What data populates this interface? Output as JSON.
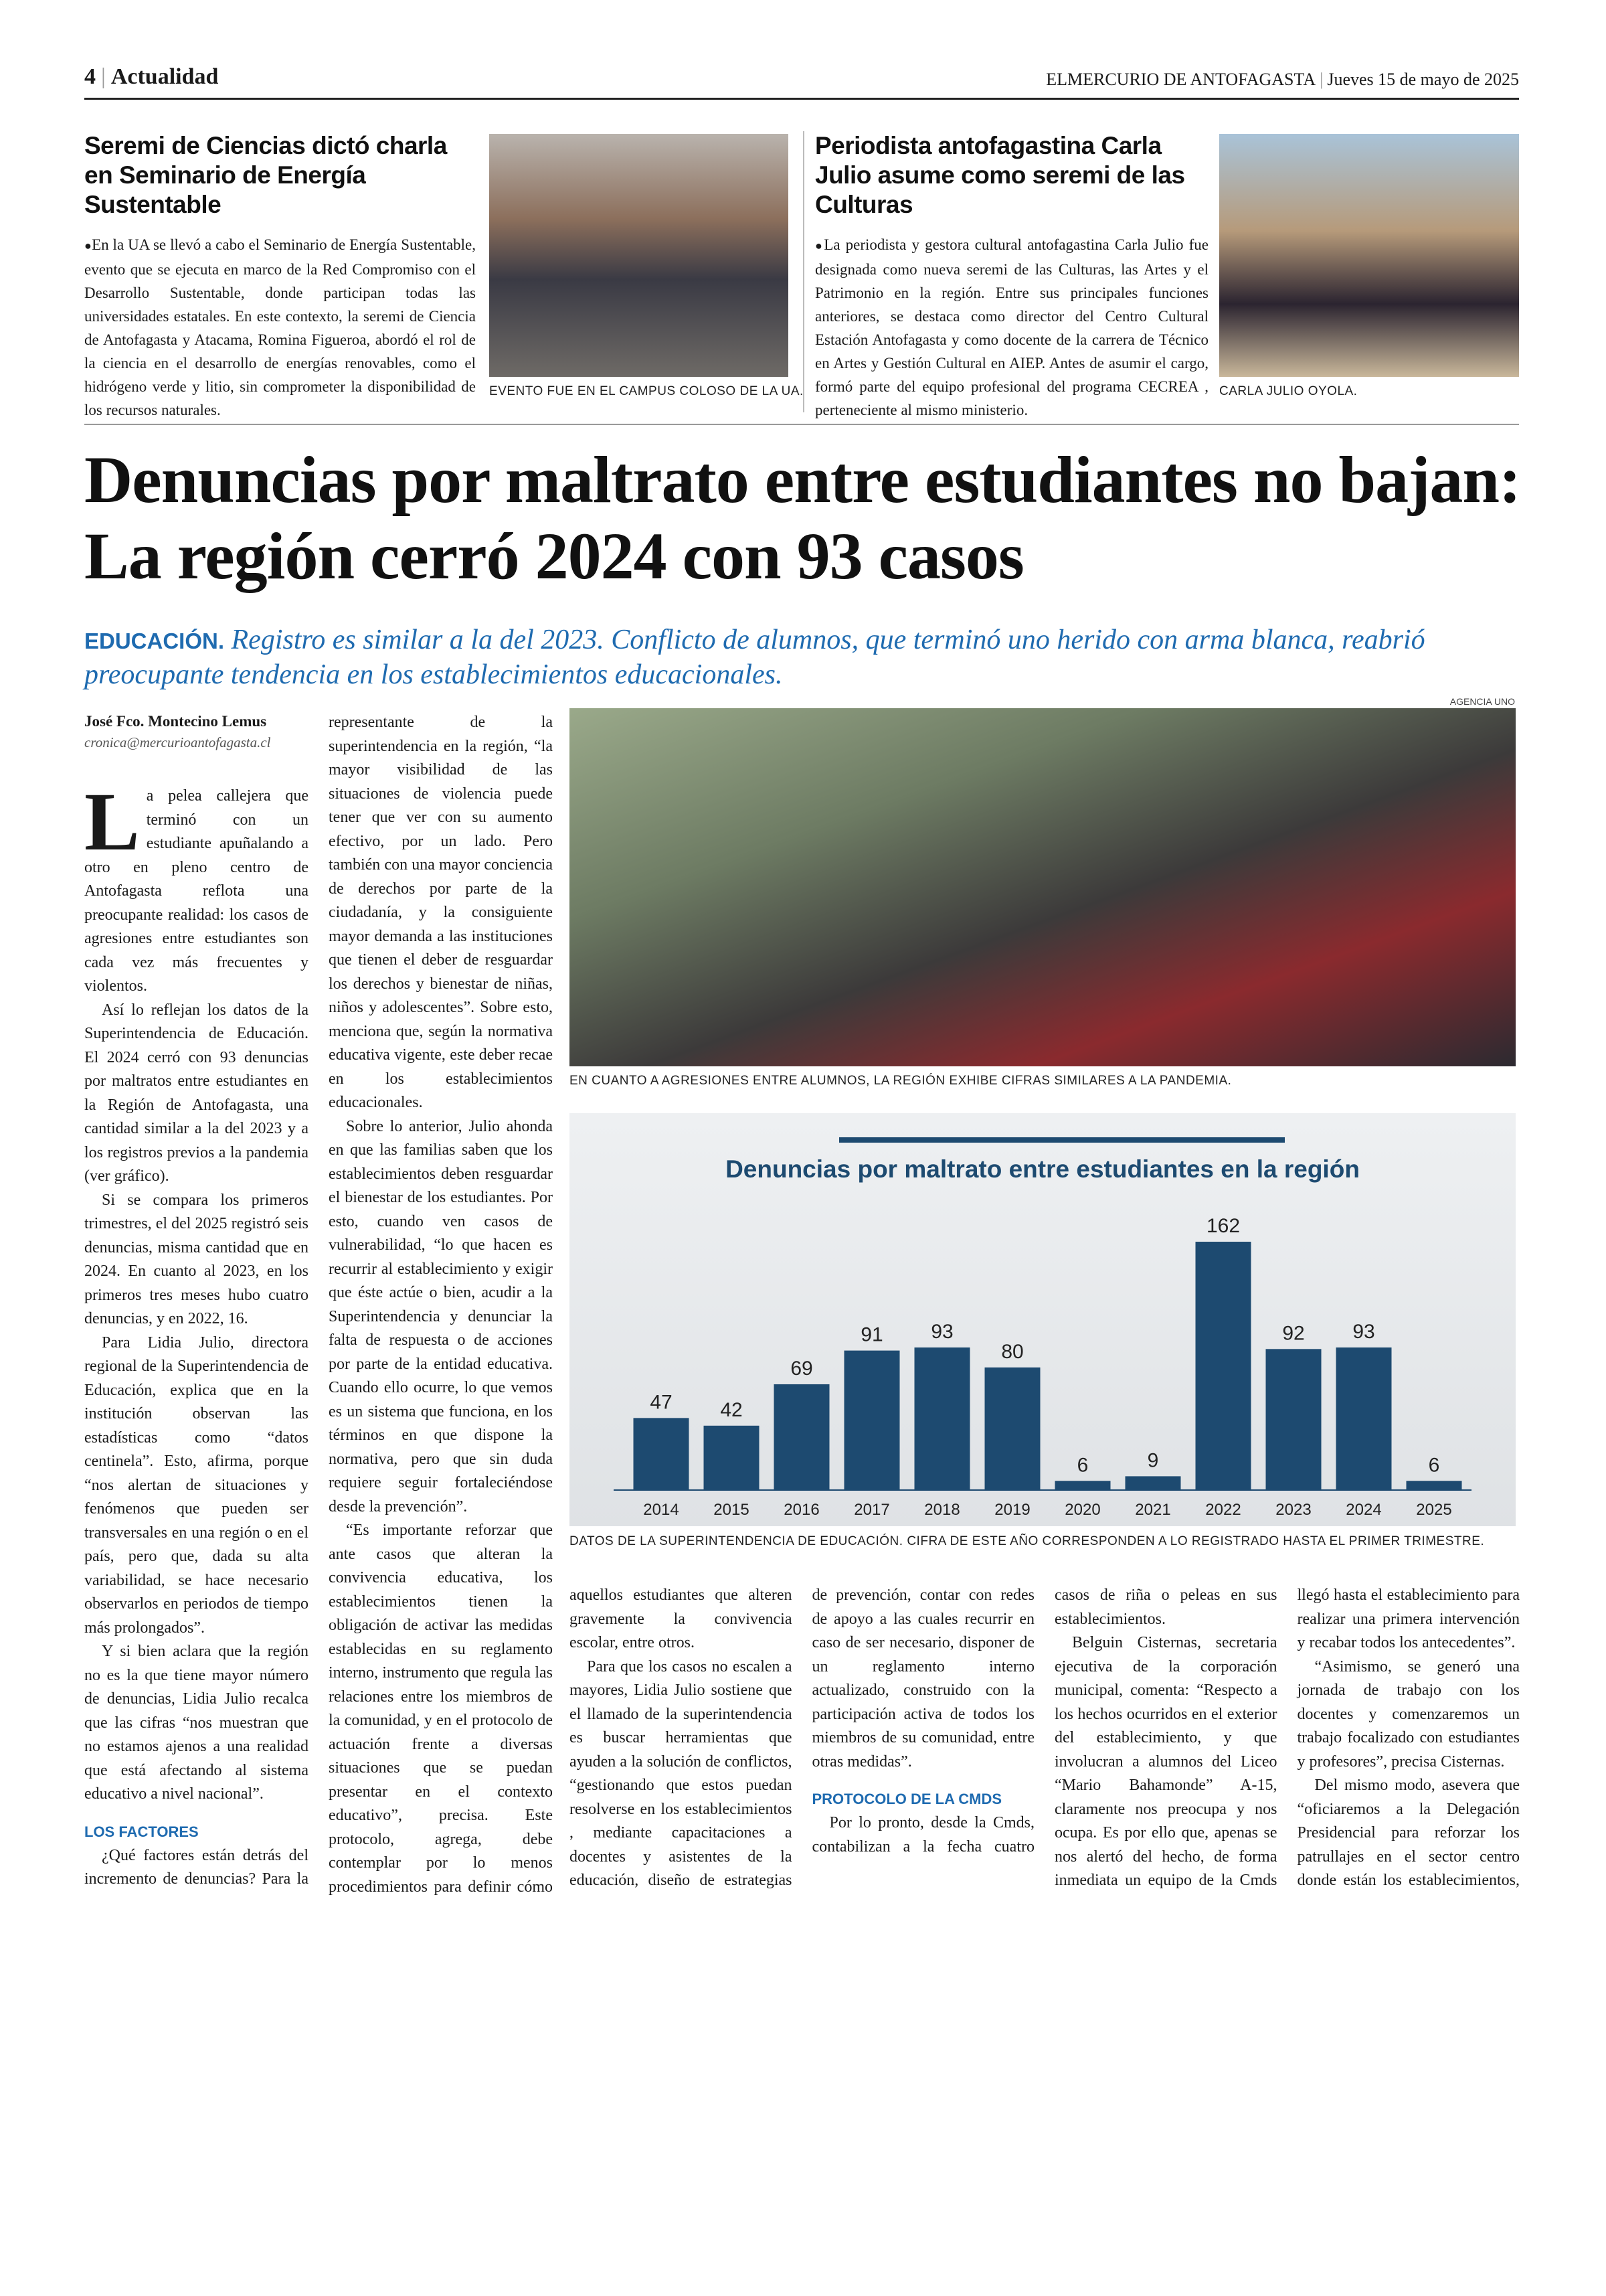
{
  "header": {
    "page": "4",
    "section": "Actualidad",
    "paper": "ELMERCURIO DE ANTOFAGASTA",
    "date": "Jueves 15 de mayo de 2025"
  },
  "briefs": [
    {
      "title": "Seremi de Ciencias dictó charla en Seminario de Energía Sustentable",
      "body": "En la UA se llevó a cabo el Seminario de Energía Sustentable, evento que se ejecuta en marco de la Red Compromiso con el Desarrollo Sustentable, donde participan todas las universidades estatales. En este contexto, la seremi de Ciencia de Antofagasta y Atacama, Romina Figueroa, abordó el rol de la ciencia en el desarrollo de energías renovables, como el hidrógeno verde y litio, sin comprometer la disponibilidad de los recursos naturales.",
      "caption": "EVENTO FUE EN EL CAMPUS COLOSO DE LA UA."
    },
    {
      "title": "Periodista antofagastina Carla Julio asume como seremi de las Culturas",
      "body": "La periodista y gestora cultural antofagastina Carla Julio fue designada como nueva seremi de las Culturas, las Artes y el Patrimonio en la región. Entre sus principales funciones anteriores, se destaca como director del Centro Cultural Estación Antofagasta y como docente de la carrera de Técnico en Artes y Gestión Cultural en AIEP. Antes de asumir el cargo, formó parte del equipo profesional del programa CECREA , perteneciente al mismo ministerio.",
      "caption": "CARLA JULIO OYOLA."
    }
  ],
  "article": {
    "headline": "Denuncias por maltrato entre estudiantes no bajan: La región cerró 2024 con 93 casos",
    "kicker": "EDUCACIÓN.",
    "deck": "Registro es similar a la del 2023. Conflicto de alumnos, que terminó uno herido con arma blanca, reabrió preocupante tendencia en los establecimientos educacionales.",
    "author": "José Fco. Montecino Lemus",
    "email": "cronica@mercurioantofagasta.cl",
    "photo_credit": "AGENCIA UNO",
    "photo_caption": "EN CUANTO A AGRESIONES ENTRE ALUMNOS, LA REGIÓN EXHIBE CIFRAS SIMILARES A LA PANDEMIA.",
    "chart_caption": "DATOS DE LA SUPERINTENDENCIA DE EDUCACIÓN. CIFRA DE ESTE AÑO CORRESPONDEN A LO REGISTRADO HASTA EL PRIMER TRIMESTRE.",
    "body_left": [
      {
        "paragraphs": [
          "La pelea callejera que terminó con un estudiante apuñalando a otro en pleno centro de Antofagasta reflota una preocupante realidad: los casos de agresiones entre estudiantes son cada vez más frecuentes y violentos.",
          "Así lo reflejan los datos de la Superintendencia de Educación. El 2024 cerró con 93 denuncias por maltratos entre estudiantes en la Región de Antofagasta, una cantidad similar a la del 2023 y a los registros previos a la pandemia (ver gráfico).",
          "Si se compara los primeros trimestres, el del 2025 registró seis denuncias, misma cantidad que en 2024. En cuanto al 2023, en los primeros tres meses hubo cuatro denuncias, y en 2022, 16.",
          "Para Lidia Julio, directora regional de la Superintendencia de Educación, explica que en la institución observan las estadísticas como “datos centinela”. Esto, afirma, porque “nos alertan de situaciones y fenómenos que pueden ser transversales en una región o en el país, pero que, dada su alta variabilidad, se hace necesario observarlos en periodos de tiempo más prolongados”.",
          "Y si bien aclara que la región no es la que tiene mayor número de denuncias, Lidia Julio recalca que las cifras “nos muestran que no estamos ajenos a una realidad que está afectando al sistema educativo a nivel nacional”."
        ]
      },
      {
        "subhead": "LOS FACTORES",
        "paragraphs": [
          "¿Qué factores están detrás del incremento de denuncias? Para la representante de la superintendencia en la región, “la mayor visibilidad de las situaciones de violencia puede tener que ver con su aumento efectivo, por un lado. Pero también con una mayor conciencia de derechos por parte de la ciudadanía, y la consiguiente mayor demanda a las instituciones que tienen el deber de resguardar los derechos y bienestar de niñas, niños y adolescentes”. Sobre esto, menciona que, según la normativa educativa vigente, este deber recae en los establecimientos educacionales.",
          "Sobre lo anterior, Julio ahonda en que las familias saben que los establecimientos deben resguardar el bienestar de los estudiantes. Por esto, cuando ven casos de vulnerabilidad, “lo que hacen es recurrir al establecimiento y exigir que éste actúe o bien, acudir a la Superintendencia y denunciar la falta de respuesta o de acciones por parte de la entidad educativa. Cuando ello ocurre, lo que vemos es un sistema que funciona, en los términos en que dispone la normativa, pero que sin duda requiere seguir fortaleciéndose desde la prevención”.",
          "“Es importante reforzar que ante casos que alteran la convivencia educativa, los establecimientos tienen la obligación de activar las medidas establecidas en su reglamento interno, instrumento que regula las relaciones entre los miembros de la comunidad, y en el protocolo de actuación frente a diversas situaciones que se puedan presentar en el contexto educativo”, precisa. Este protocolo, agrega, debe contemplar por lo menos procedimientos para definir cómo resolver estos casos, quiénes deben implementarlo, plazos, y si es necesario, la aplicación de medidas disciplinarias a"
        ]
      }
    ],
    "body_right": [
      {
        "paragraphs": [
          "aquellos estudiantes que alteren gravemente la convivencia escolar, entre otros.",
          "Para que los casos no escalen a mayores, Lidia Julio sostiene que el llamado de la superintendencia es buscar herramientas que ayuden a la solución de conflictos, “gestionando que estos puedan resolverse en los establecimientos , mediante capacitaciones a docentes y asistentes de la educación, diseño de estrategias de prevención, contar con redes de apoyo a las cuales recurrir en caso de ser necesario, disponer de un reglamento interno actualizado, construido con la participación activa de todos los miembros de su comunidad, entre otras medidas”."
        ]
      },
      {
        "subhead": "PROTOCOLO DE LA CMDS",
        "paragraphs": [
          "Por lo pronto, desde la Cmds, contabilizan a la fecha cuatro casos de riña o peleas en sus establecimientos.",
          "Belguin Cisternas, secretaria ejecutiva de la corporación municipal, comenta: “Respecto a los hechos ocurridos en el exterior del establecimiento, y que involucran a alumnos del Liceo “Mario Bahamonde” A-15, claramente nos preocupa y nos ocupa. Es por ello que, apenas se nos alertó del hecho, de forma inmediata un equipo de la Cmds llegó hasta el establecimiento para realizar una primera intervención y recabar todos los antecedentes”.",
          "“Asimismo, se generó una jornada de trabajo con los docentes y comenzaremos un trabajo focalizado con estudiantes y profesores”, precisa Cisternas.",
          "Del mismo modo, asevera que “oficiaremos a la Delegación Presidencial para reforzar los patrullajes en el sector centro donde están los establecimientos, sobre todo cuando los estudiantes salen de clases y donde se exponen a asaltos”."
        ]
      }
    ]
  },
  "chart_data": {
    "type": "bar",
    "title": "Denuncias por maltrato entre estudiantes en la región",
    "categories": [
      "2014",
      "2015",
      "2016",
      "2017",
      "2018",
      "2019",
      "2020",
      "2021",
      "2022",
      "2023",
      "2024",
      "2025"
    ],
    "values": [
      47,
      42,
      69,
      91,
      93,
      80,
      6,
      9,
      162,
      92,
      93,
      6
    ],
    "color": "#1d4a70"
  }
}
